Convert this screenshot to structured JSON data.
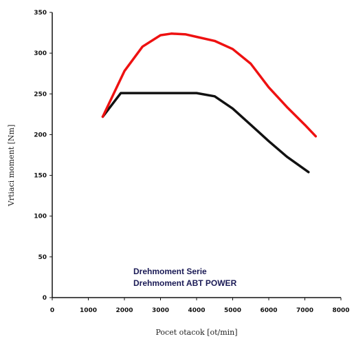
{
  "chart_data": {
    "type": "line",
    "xlabel": "Pocet otacok [ot/min]",
    "ylabel": "Vrtiaci moment [Nm]",
    "xlim": [
      0,
      8000
    ],
    "ylim": [
      0,
      350
    ],
    "x_ticks": [
      "0",
      "1000",
      "2000",
      "3000",
      "4000",
      "5000",
      "6000",
      "7000",
      "8000"
    ],
    "y_ticks": [
      "0",
      "50",
      "100",
      "150",
      "200",
      "250",
      "300",
      "350"
    ],
    "grid": false,
    "legend_position": "bottom-left",
    "series": [
      {
        "name": "Drehmoment Serie",
        "color": "#111111",
        "x": [
          1400,
          1900,
          2500,
          3000,
          4000,
          4500,
          5000,
          5500,
          6000,
          6500,
          7100
        ],
        "y": [
          222,
          251,
          251,
          251,
          251,
          247,
          232,
          212,
          192,
          173,
          154
        ]
      },
      {
        "name": "Drehmoment ABT POWER",
        "color": "#ee1111",
        "x": [
          1400,
          2000,
          2500,
          3000,
          3300,
          3700,
          4000,
          4500,
          5000,
          5500,
          6000,
          6500,
          7000,
          7300
        ],
        "y": [
          222,
          278,
          308,
          322,
          324,
          323,
          320,
          315,
          305,
          287,
          258,
          234,
          212,
          198
        ]
      }
    ]
  }
}
